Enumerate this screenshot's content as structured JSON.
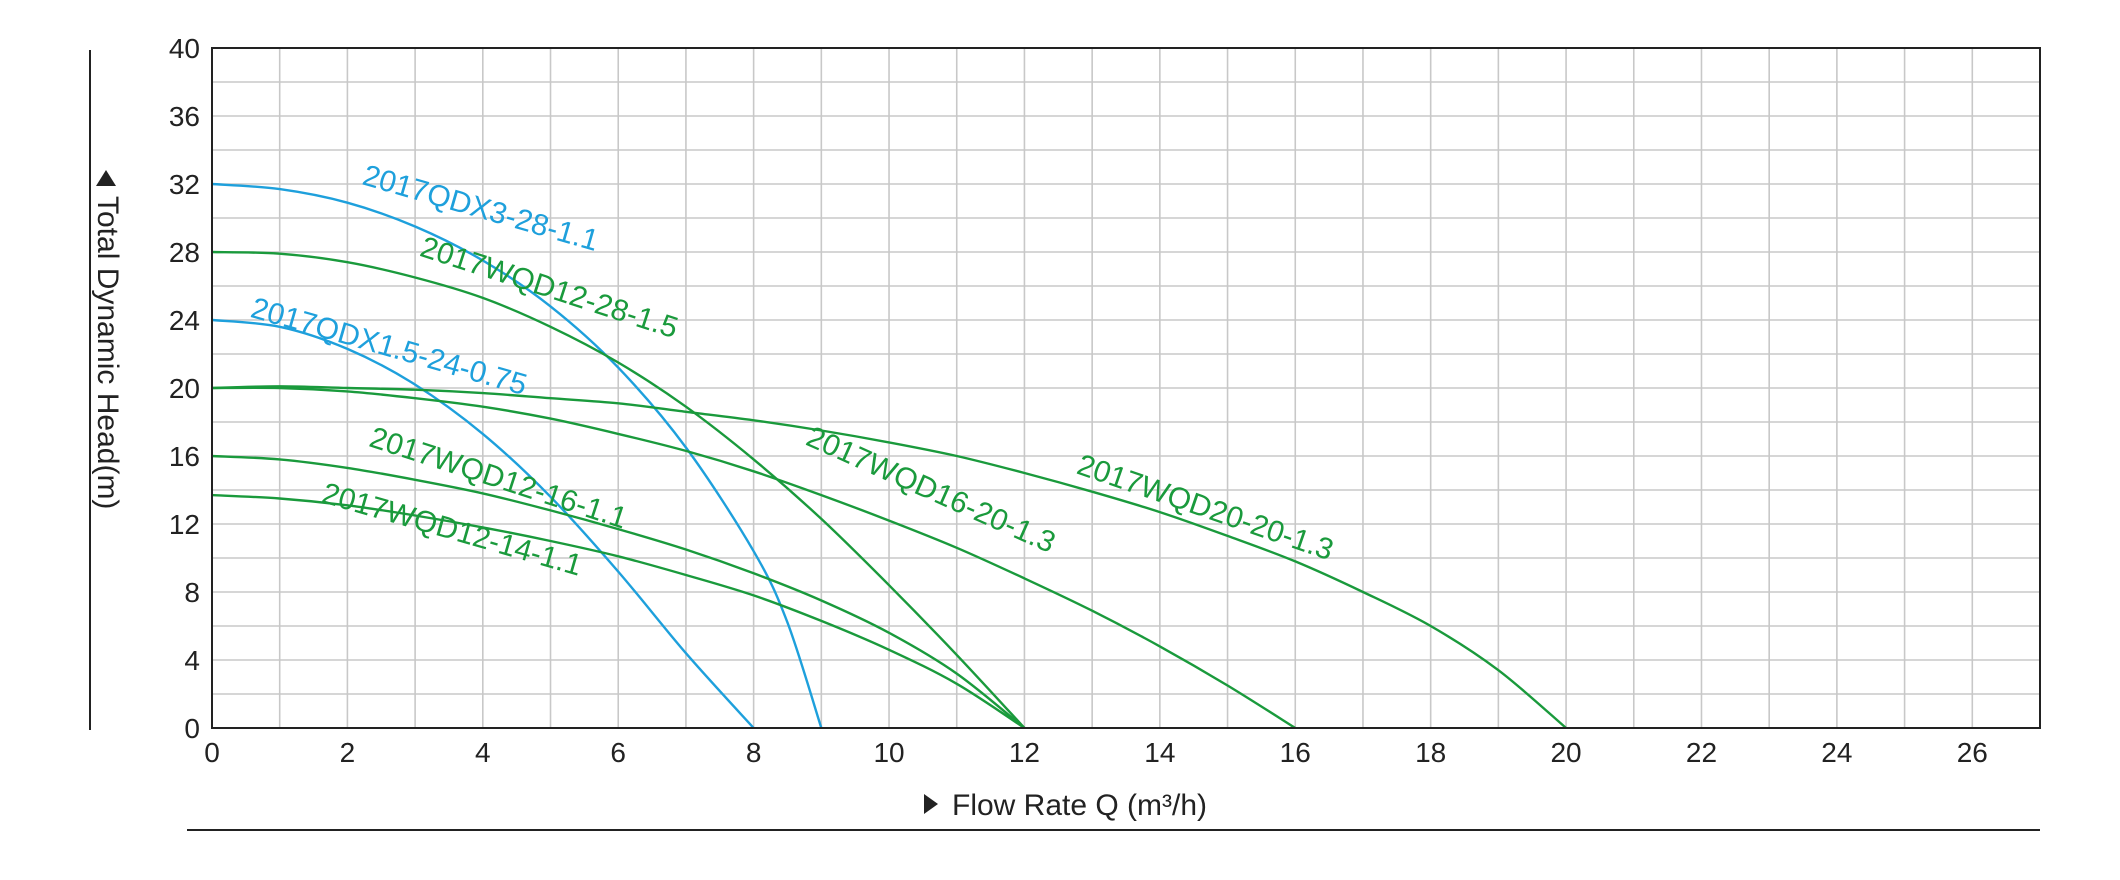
{
  "chart_data": {
    "type": "line",
    "xlabel": "Flow Rate Q (m³/h)",
    "ylabel": "Total Dynamic Head(m)",
    "xlim": [
      0,
      27
    ],
    "ylim": [
      0,
      40
    ],
    "xticks": [
      0,
      2,
      4,
      6,
      8,
      10,
      12,
      14,
      16,
      18,
      20,
      22,
      24,
      26
    ],
    "yticks": [
      0,
      4,
      8,
      12,
      16,
      20,
      24,
      28,
      32,
      36,
      40
    ],
    "grid": true,
    "colors": {
      "blue": "#1ea0dc",
      "green": "#1a9a3c",
      "grid": "#c8c8c8",
      "axis": "#222222"
    },
    "series": [
      {
        "name": "2017QDX3-28-1.1",
        "color": "#1ea0dc",
        "points": [
          [
            0,
            32
          ],
          [
            1,
            31.7
          ],
          [
            2,
            30.9
          ],
          [
            3,
            29.5
          ],
          [
            4,
            27.5
          ],
          [
            5,
            24.8
          ],
          [
            6,
            21.2
          ],
          [
            7,
            16.5
          ],
          [
            8,
            10.4
          ],
          [
            8.5,
            6.2
          ],
          [
            9,
            0
          ]
        ]
      },
      {
        "name": "2017QDX1.5-24-0.75",
        "color": "#1ea0dc",
        "points": [
          [
            0,
            24
          ],
          [
            1,
            23.6
          ],
          [
            2,
            22.3
          ],
          [
            3,
            20.2
          ],
          [
            4,
            17.3
          ],
          [
            5,
            13.6
          ],
          [
            6,
            9.2
          ],
          [
            7,
            4.4
          ],
          [
            8,
            0
          ]
        ]
      },
      {
        "name": "2017WQD12-28-1.5",
        "color": "#1a9a3c",
        "points": [
          [
            0,
            28
          ],
          [
            1,
            27.9
          ],
          [
            2,
            27.4
          ],
          [
            3,
            26.5
          ],
          [
            4,
            25.3
          ],
          [
            5,
            23.6
          ],
          [
            6,
            21.5
          ],
          [
            7,
            18.9
          ],
          [
            8,
            15.8
          ],
          [
            9,
            12.3
          ],
          [
            10,
            8.4
          ],
          [
            11,
            4.3
          ],
          [
            12,
            0
          ]
        ]
      },
      {
        "name": "2017WQD16-20-1.3",
        "color": "#1a9a3c",
        "points": [
          [
            0,
            20
          ],
          [
            1,
            20
          ],
          [
            2,
            19.8
          ],
          [
            3,
            19.4
          ],
          [
            4,
            18.9
          ],
          [
            5,
            18.2
          ],
          [
            6,
            17.3
          ],
          [
            7,
            16.3
          ],
          [
            8,
            15.1
          ],
          [
            9,
            13.7
          ],
          [
            10,
            12.2
          ],
          [
            11,
            10.6
          ],
          [
            12,
            8.8
          ],
          [
            13,
            6.9
          ],
          [
            14,
            4.8
          ],
          [
            15,
            2.5
          ],
          [
            16,
            0
          ]
        ]
      },
      {
        "name": "2017WQD20-20-1.3",
        "color": "#1a9a3c",
        "points": [
          [
            0,
            20
          ],
          [
            1,
            20.1
          ],
          [
            2,
            20
          ],
          [
            3,
            19.9
          ],
          [
            4,
            19.7
          ],
          [
            5,
            19.4
          ],
          [
            6,
            19.1
          ],
          [
            7,
            18.6
          ],
          [
            8,
            18.1
          ],
          [
            9,
            17.5
          ],
          [
            10,
            16.8
          ],
          [
            11,
            16
          ],
          [
            12,
            15
          ],
          [
            13,
            13.9
          ],
          [
            14,
            12.7
          ],
          [
            15,
            11.3
          ],
          [
            16,
            9.8
          ],
          [
            17,
            8
          ],
          [
            18,
            6
          ],
          [
            19,
            3.4
          ],
          [
            20,
            0
          ]
        ]
      },
      {
        "name": "2017WQD12-16-1.1",
        "color": "#1a9a3c",
        "points": [
          [
            0,
            16
          ],
          [
            1,
            15.8
          ],
          [
            2,
            15.3
          ],
          [
            3,
            14.6
          ],
          [
            4,
            13.8
          ],
          [
            5,
            12.8
          ],
          [
            6,
            11.7
          ],
          [
            7,
            10.5
          ],
          [
            8,
            9.1
          ],
          [
            9,
            7.5
          ],
          [
            10,
            5.6
          ],
          [
            11,
            3.2
          ],
          [
            12,
            0
          ]
        ]
      },
      {
        "name": "2017WQD12-14-1.1",
        "color": "#1a9a3c",
        "points": [
          [
            0,
            13.7
          ],
          [
            1,
            13.5
          ],
          [
            2,
            13.1
          ],
          [
            3,
            12.5
          ],
          [
            4,
            11.8
          ],
          [
            5,
            11
          ],
          [
            6,
            10.1
          ],
          [
            7,
            9
          ],
          [
            8,
            7.8
          ],
          [
            9,
            6.3
          ],
          [
            10,
            4.6
          ],
          [
            11,
            2.6
          ],
          [
            12,
            0
          ]
        ]
      }
    ]
  }
}
